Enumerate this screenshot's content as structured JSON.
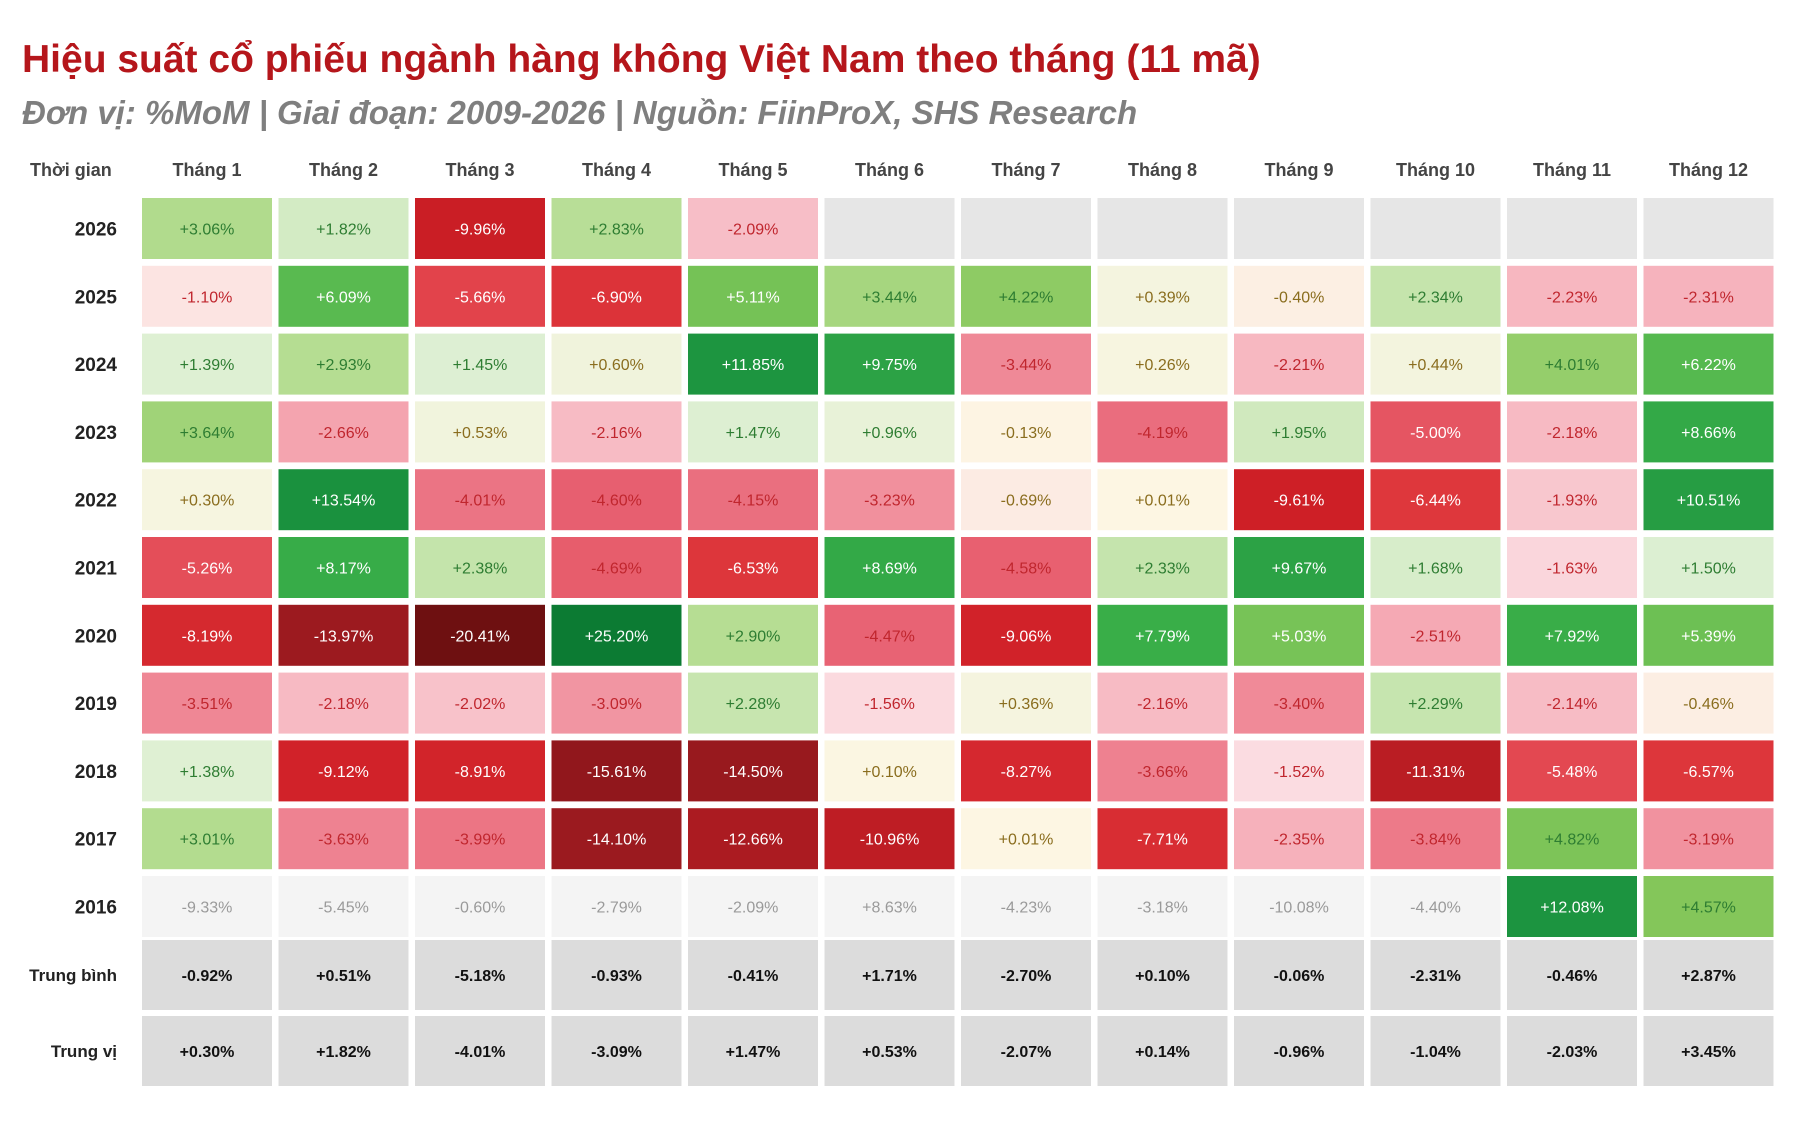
{
  "title": "Hiệu suất cổ phiếu ngành hàng không Việt Nam theo tháng (11 mã)",
  "subtitle": "Đơn vị: %MoM | Giai đoạn: 2009-2026 | Nguồn: FiinProX, SHS Research",
  "chart_data": {
    "type": "heatmap",
    "title": "Hiệu suất cổ phiếu ngành hàng không Việt Nam theo tháng (11 mã)",
    "subtitle": "Đơn vị: %MoM | Giai đoạn: 2009-2026 | Nguồn: FiinProX, SHS Research",
    "corner_label": "Thời gian",
    "columns": [
      "Tháng 1",
      "Tháng 2",
      "Tháng 3",
      "Tháng 4",
      "Tháng 5",
      "Tháng 6",
      "Tháng 7",
      "Tháng 8",
      "Tháng 9",
      "Tháng 10",
      "Tháng 11",
      "Tháng 12"
    ],
    "rows": [
      "2026",
      "2025",
      "2024",
      "2023",
      "2022",
      "2021",
      "2020",
      "2019",
      "2018",
      "2017",
      "2016"
    ],
    "values": [
      [
        3.06,
        1.82,
        -9.96,
        2.83,
        -2.09,
        null,
        null,
        null,
        null,
        null,
        null,
        null
      ],
      [
        -1.1,
        6.09,
        -5.66,
        -6.9,
        5.11,
        3.44,
        4.22,
        0.39,
        -0.4,
        2.34,
        -2.23,
        -2.31
      ],
      [
        1.39,
        2.93,
        1.45,
        0.6,
        11.85,
        9.75,
        -3.44,
        0.26,
        -2.21,
        0.44,
        4.01,
        6.22
      ],
      [
        3.64,
        -2.66,
        0.53,
        -2.16,
        1.47,
        0.96,
        -0.13,
        -4.19,
        1.95,
        -5.0,
        -2.18,
        8.66
      ],
      [
        0.3,
        13.54,
        -4.01,
        -4.6,
        -4.15,
        -3.23,
        -0.69,
        0.01,
        -9.61,
        -6.44,
        -1.93,
        10.51
      ],
      [
        -5.26,
        8.17,
        2.38,
        -4.69,
        -6.53,
        8.69,
        -4.58,
        2.33,
        9.67,
        1.68,
        -1.63,
        1.5
      ],
      [
        -8.19,
        -13.97,
        -20.41,
        25.2,
        2.9,
        -4.47,
        -9.06,
        7.79,
        5.03,
        -2.51,
        7.92,
        5.39
      ],
      [
        -3.51,
        -2.18,
        -2.02,
        -3.09,
        2.28,
        -1.56,
        0.36,
        -2.16,
        -3.4,
        2.29,
        -2.14,
        -0.46
      ],
      [
        1.38,
        -9.12,
        -8.91,
        -15.61,
        -14.5,
        0.1,
        -8.27,
        -3.66,
        -1.52,
        -11.31,
        -5.48,
        -6.57
      ],
      [
        3.01,
        -3.63,
        -3.99,
        -14.1,
        -12.66,
        -10.96,
        0.01,
        -7.71,
        -2.35,
        -3.84,
        4.82,
        -3.19
      ],
      [
        -9.33,
        -5.45,
        -0.6,
        -2.79,
        -2.09,
        8.63,
        -4.23,
        -3.18,
        -10.08,
        -4.4,
        12.08,
        4.57
      ]
    ],
    "labels": [
      [
        "+3.06%",
        "+1.82%",
        "-9.96%",
        "+2.83%",
        "-2.09%",
        "",
        "",
        "",
        "",
        "",
        "",
        ""
      ],
      [
        "-1.10%",
        "+6.09%",
        "-5.66%",
        "-6.90%",
        "+5.11%",
        "+3.44%",
        "+4.22%",
        "+0.39%",
        "-0.40%",
        "+2.34%",
        "-2.23%",
        "-2.31%"
      ],
      [
        "+1.39%",
        "+2.93%",
        "+1.45%",
        "+0.60%",
        "+11.85%",
        "+9.75%",
        "-3.44%",
        "+0.26%",
        "-2.21%",
        "+0.44%",
        "+4.01%",
        "+6.22%"
      ],
      [
        "+3.64%",
        "-2.66%",
        "+0.53%",
        "-2.16%",
        "+1.47%",
        "+0.96%",
        "-0.13%",
        "-4.19%",
        "+1.95%",
        "-5.00%",
        "-2.18%",
        "+8.66%"
      ],
      [
        "+0.30%",
        "+13.54%",
        "-4.01%",
        "-4.60%",
        "-4.15%",
        "-3.23%",
        "-0.69%",
        "+0.01%",
        "-9.61%",
        "-6.44%",
        "-1.93%",
        "+10.51%"
      ],
      [
        "-5.26%",
        "+8.17%",
        "+2.38%",
        "-4.69%",
        "-6.53%",
        "+8.69%",
        "-4.58%",
        "+2.33%",
        "+9.67%",
        "+1.68%",
        "-1.63%",
        "+1.50%"
      ],
      [
        "-8.19%",
        "-13.97%",
        "-20.41%",
        "+25.20%",
        "+2.90%",
        "-4.47%",
        "-9.06%",
        "+7.79%",
        "+5.03%",
        "-2.51%",
        "+7.92%",
        "+5.39%"
      ],
      [
        "-3.51%",
        "-2.18%",
        "-2.02%",
        "-3.09%",
        "+2.28%",
        "-1.56%",
        "+0.36%",
        "-2.16%",
        "-3.40%",
        "+2.29%",
        "-2.14%",
        "-0.46%"
      ],
      [
        "+1.38%",
        "-9.12%",
        "-8.91%",
        "-15.61%",
        "-14.50%",
        "+0.10%",
        "-8.27%",
        "-3.66%",
        "-1.52%",
        "-11.31%",
        "-5.48%",
        "-6.57%"
      ],
      [
        "+3.01%",
        "-3.63%",
        "-3.99%",
        "-14.10%",
        "-12.66%",
        "-10.96%",
        "+0.01%",
        "-7.71%",
        "-2.35%",
        "-3.84%",
        "+4.82%",
        "-3.19%"
      ],
      [
        "-9.33%",
        "-5.45%",
        "-0.60%",
        "-2.79%",
        "-2.09%",
        "+8.63%",
        "-4.23%",
        "-3.18%",
        "-10.08%",
        "-4.40%",
        "+12.08%",
        "+4.57%"
      ]
    ],
    "muted_rows": [
      "2016"
    ],
    "muted_row_exceptions": [
      {
        "row": "2016",
        "column": "Tháng 11"
      },
      {
        "row": "2016",
        "column": "Tháng 12"
      }
    ],
    "summary_rows": [
      {
        "label": "Trung bình",
        "labels": [
          "-0.92%",
          "+0.51%",
          "-5.18%",
          "-0.93%",
          "-0.41%",
          "+1.71%",
          "-2.70%",
          "+0.10%",
          "-0.06%",
          "-2.31%",
          "-0.46%",
          "+2.87%"
        ]
      },
      {
        "label": "Trung vị",
        "labels": [
          "+0.30%",
          "+1.82%",
          "-4.01%",
          "-3.09%",
          "+1.47%",
          "+0.53%",
          "-2.07%",
          "+0.14%",
          "-0.96%",
          "-1.04%",
          "-2.03%",
          "+3.45%"
        ]
      }
    ],
    "colors": {
      "empty": "#e6e6e6",
      "muted": "#f4f4f4",
      "muted_text": "#9a9a9a",
      "summary": "#dcdcdc",
      "title": "#b5161b",
      "subtitle": "#7f7f7f"
    }
  }
}
